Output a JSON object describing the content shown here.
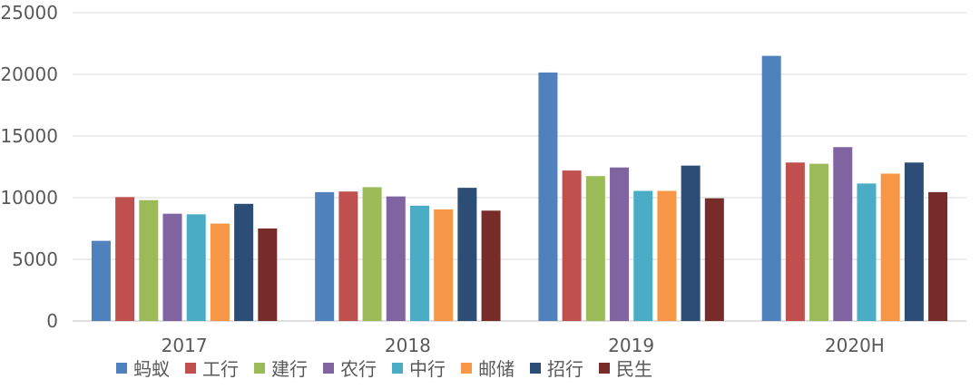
{
  "chart_data": {
    "type": "bar",
    "title": "",
    "xlabel": "",
    "ylabel": "",
    "categories": [
      "2017",
      "2018",
      "2019",
      "2020H"
    ],
    "ylim": [
      0,
      25000
    ],
    "yticks": [
      0,
      5000,
      10000,
      15000,
      20000,
      25000
    ],
    "grid": true,
    "legend_position": "bottom",
    "series": [
      {
        "name": "蚂蚁",
        "color": "#4f81bd",
        "values": [
          6500,
          10450,
          20150,
          21500
        ]
      },
      {
        "name": "工行",
        "color": "#c0504d",
        "values": [
          10050,
          10500,
          12200,
          12850
        ]
      },
      {
        "name": "建行",
        "color": "#9bbb59",
        "values": [
          9800,
          10850,
          11750,
          12750
        ]
      },
      {
        "name": "农行",
        "color": "#8064a2",
        "values": [
          8700,
          10100,
          12450,
          14100
        ]
      },
      {
        "name": "中行",
        "color": "#4bacc6",
        "values": [
          8650,
          9350,
          10550,
          11150
        ]
      },
      {
        "name": "邮储",
        "color": "#f79646",
        "values": [
          7900,
          9050,
          10550,
          11950
        ]
      },
      {
        "name": "招行",
        "color": "#2c4d75",
        "values": [
          9500,
          10800,
          12600,
          12850
        ]
      },
      {
        "name": "民生",
        "color": "#772c2a",
        "values": [
          7500,
          8950,
          9950,
          10450
        ]
      }
    ]
  }
}
